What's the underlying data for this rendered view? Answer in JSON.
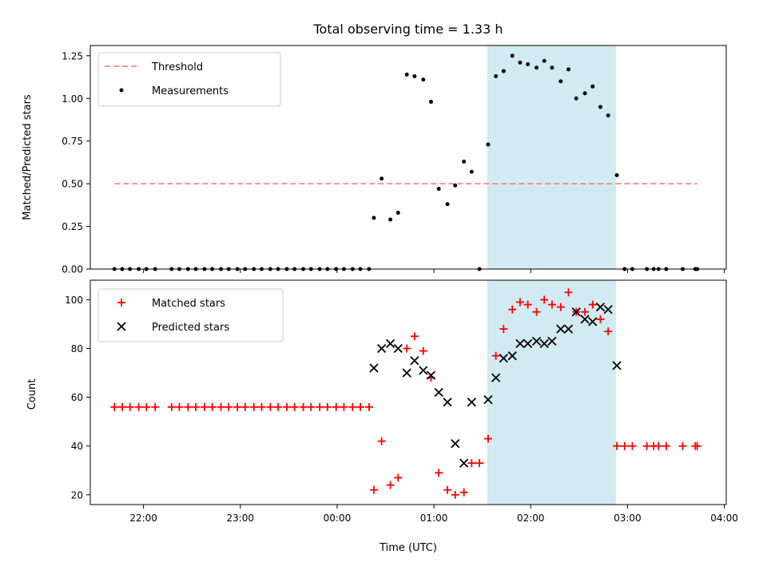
{
  "chart_data": {
    "title": "Total observing time = 1.33 h",
    "xlabel": "Time (UTC)",
    "x_ticks": [
      "22:00",
      "23:00",
      "00:00",
      "01:00",
      "02:00",
      "03:00",
      "04:00"
    ],
    "x_tick_hours": [
      22,
      23,
      24,
      25,
      26,
      27,
      28
    ],
    "xlim_hours": [
      21.45,
      28.02
    ],
    "shaded_span_hours": [
      25.55,
      26.88
    ],
    "shade_color": "#add8e6",
    "panels": [
      {
        "type": "scatter",
        "ylabel": "Matched/Predicted stars",
        "ylim": [
          0,
          1.31
        ],
        "y_ticks": [
          "0.00",
          "0.25",
          "0.50",
          "0.75",
          "1.00",
          "1.25"
        ],
        "y_tick_values": [
          0,
          0.25,
          0.5,
          0.75,
          1.0,
          1.25
        ],
        "legend_position": "upper-left",
        "threshold": {
          "name": "Threshold",
          "value": 0.5,
          "x_range_hours": [
            21.7,
            27.72
          ],
          "color": "#ff7070"
        },
        "series": [
          {
            "name": "Measurements",
            "marker": "dot",
            "color": "#000000",
            "points": [
              [
                21.7,
                0
              ],
              [
                21.78,
                0
              ],
              [
                21.86,
                0
              ],
              [
                21.95,
                0
              ],
              [
                22.03,
                0
              ],
              [
                22.12,
                0
              ],
              [
                22.29,
                0
              ],
              [
                22.37,
                0
              ],
              [
                22.46,
                0
              ],
              [
                22.54,
                0
              ],
              [
                22.63,
                0
              ],
              [
                22.71,
                0
              ],
              [
                22.8,
                0
              ],
              [
                22.88,
                0
              ],
              [
                22.97,
                0
              ],
              [
                23.05,
                0
              ],
              [
                23.14,
                0
              ],
              [
                23.22,
                0
              ],
              [
                23.31,
                0
              ],
              [
                23.39,
                0
              ],
              [
                23.48,
                0
              ],
              [
                23.56,
                0
              ],
              [
                23.65,
                0
              ],
              [
                23.73,
                0
              ],
              [
                23.82,
                0
              ],
              [
                23.9,
                0
              ],
              [
                23.99,
                0
              ],
              [
                24.07,
                0
              ],
              [
                24.16,
                0
              ],
              [
                24.24,
                0
              ],
              [
                24.33,
                0
              ],
              [
                24.38,
                0.3
              ],
              [
                24.46,
                0.53
              ],
              [
                24.55,
                0.29
              ],
              [
                24.63,
                0.33
              ],
              [
                24.72,
                1.14
              ],
              [
                24.8,
                1.13
              ],
              [
                24.89,
                1.11
              ],
              [
                24.97,
                0.98
              ],
              [
                25.05,
                0.47
              ],
              [
                25.14,
                0.38
              ],
              [
                25.22,
                0.49
              ],
              [
                25.31,
                0.63
              ],
              [
                25.39,
                0.57
              ],
              [
                25.47,
                0
              ],
              [
                25.56,
                0.73
              ],
              [
                25.64,
                1.13
              ],
              [
                25.72,
                1.16
              ],
              [
                25.81,
                1.25
              ],
              [
                25.89,
                1.21
              ],
              [
                25.97,
                1.2
              ],
              [
                26.06,
                1.18
              ],
              [
                26.14,
                1.22
              ],
              [
                26.22,
                1.18
              ],
              [
                26.31,
                1.1
              ],
              [
                26.39,
                1.17
              ],
              [
                26.47,
                1.0
              ],
              [
                26.56,
                1.03
              ],
              [
                26.64,
                1.07
              ],
              [
                26.72,
                0.95
              ],
              [
                26.8,
                0.9
              ],
              [
                26.89,
                0.55
              ],
              [
                26.97,
                0
              ],
              [
                27.05,
                0
              ],
              [
                27.2,
                0
              ],
              [
                27.27,
                0
              ],
              [
                27.32,
                0
              ],
              [
                27.4,
                0
              ],
              [
                27.57,
                0
              ],
              [
                27.7,
                0
              ],
              [
                27.72,
                0
              ]
            ]
          }
        ]
      },
      {
        "type": "scatter",
        "ylabel": "Count",
        "ylim": [
          16,
          108
        ],
        "y_ticks": [
          "20",
          "40",
          "60",
          "80",
          "100"
        ],
        "y_tick_values": [
          20,
          40,
          60,
          80,
          100
        ],
        "legend_position": "upper-left",
        "series": [
          {
            "name": "Matched stars",
            "marker": "plus",
            "color": "#ff0000",
            "points": [
              [
                21.7,
                56
              ],
              [
                21.78,
                56
              ],
              [
                21.86,
                56
              ],
              [
                21.95,
                56
              ],
              [
                22.03,
                56
              ],
              [
                22.12,
                56
              ],
              [
                22.29,
                56
              ],
              [
                22.37,
                56
              ],
              [
                22.46,
                56
              ],
              [
                22.54,
                56
              ],
              [
                22.63,
                56
              ],
              [
                22.71,
                56
              ],
              [
                22.8,
                56
              ],
              [
                22.88,
                56
              ],
              [
                22.97,
                56
              ],
              [
                23.05,
                56
              ],
              [
                23.14,
                56
              ],
              [
                23.22,
                56
              ],
              [
                23.31,
                56
              ],
              [
                23.39,
                56
              ],
              [
                23.48,
                56
              ],
              [
                23.56,
                56
              ],
              [
                23.65,
                56
              ],
              [
                23.73,
                56
              ],
              [
                23.82,
                56
              ],
              [
                23.9,
                56
              ],
              [
                23.99,
                56
              ],
              [
                24.07,
                56
              ],
              [
                24.16,
                56
              ],
              [
                24.24,
                56
              ],
              [
                24.33,
                56
              ],
              [
                24.38,
                22
              ],
              [
                24.46,
                42
              ],
              [
                24.55,
                24
              ],
              [
                24.63,
                27
              ],
              [
                24.72,
                80
              ],
              [
                24.8,
                85
              ],
              [
                24.89,
                79
              ],
              [
                24.97,
                68
              ],
              [
                25.05,
                29
              ],
              [
                25.14,
                22
              ],
              [
                25.22,
                20
              ],
              [
                25.31,
                21
              ],
              [
                25.39,
                33
              ],
              [
                25.47,
                33
              ],
              [
                25.56,
                43
              ],
              [
                25.64,
                77
              ],
              [
                25.72,
                88
              ],
              [
                25.81,
                96
              ],
              [
                25.89,
                99
              ],
              [
                25.97,
                98
              ],
              [
                26.06,
                95
              ],
              [
                26.14,
                100
              ],
              [
                26.22,
                98
              ],
              [
                26.31,
                97
              ],
              [
                26.39,
                103
              ],
              [
                26.47,
                95
              ],
              [
                26.56,
                95
              ],
              [
                26.64,
                98
              ],
              [
                26.72,
                92
              ],
              [
                26.8,
                87
              ],
              [
                26.89,
                40
              ],
              [
                26.97,
                40
              ],
              [
                27.05,
                40
              ],
              [
                27.2,
                40
              ],
              [
                27.27,
                40
              ],
              [
                27.32,
                40
              ],
              [
                27.4,
                40
              ],
              [
                27.57,
                40
              ],
              [
                27.7,
                40
              ],
              [
                27.72,
                40
              ]
            ]
          },
          {
            "name": "Predicted stars",
            "marker": "x",
            "color": "#000000",
            "points": [
              [
                24.38,
                72
              ],
              [
                24.46,
                80
              ],
              [
                24.55,
                82
              ],
              [
                24.63,
                80
              ],
              [
                24.72,
                70
              ],
              [
                24.8,
                75
              ],
              [
                24.89,
                71
              ],
              [
                24.97,
                69
              ],
              [
                25.05,
                62
              ],
              [
                25.14,
                58
              ],
              [
                25.22,
                41
              ],
              [
                25.31,
                33
              ],
              [
                25.39,
                58
              ],
              [
                25.56,
                59
              ],
              [
                25.64,
                68
              ],
              [
                25.72,
                76
              ],
              [
                25.81,
                77
              ],
              [
                25.89,
                82
              ],
              [
                25.97,
                82
              ],
              [
                26.06,
                83
              ],
              [
                26.14,
                82
              ],
              [
                26.22,
                83
              ],
              [
                26.31,
                88
              ],
              [
                26.39,
                88
              ],
              [
                26.47,
                95
              ],
              [
                26.56,
                92
              ],
              [
                26.64,
                91
              ],
              [
                26.72,
                97
              ],
              [
                26.8,
                96
              ],
              [
                26.89,
                73
              ]
            ]
          }
        ]
      }
    ]
  }
}
